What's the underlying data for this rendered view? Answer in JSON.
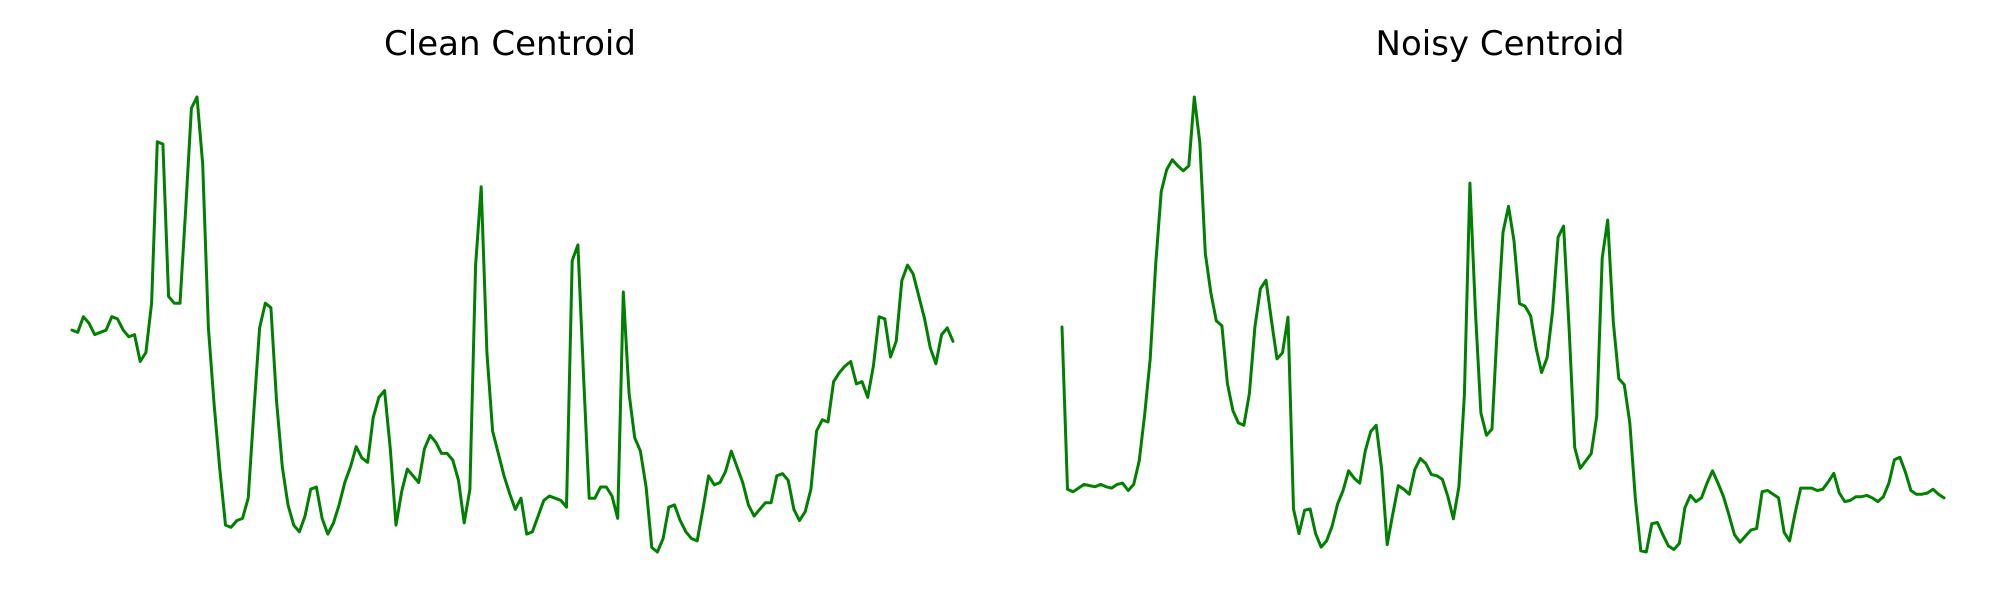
{
  "chart_data": [
    {
      "type": "line",
      "title": "Clean Centroid",
      "xlabel": "",
      "ylabel": "",
      "grid": false,
      "axes_visible": false,
      "color": "#008000",
      "series": [
        {
          "values": [
            0.7,
            0.69,
            0.76,
            0.73,
            0.68,
            0.69,
            0.7,
            0.76,
            0.75,
            0.7,
            0.67,
            0.68,
            0.56,
            0.6,
            0.82,
            1.54,
            1.53,
            0.85,
            0.82,
            0.82,
            1.24,
            1.69,
            1.74,
            1.44,
            0.71,
            0.37,
            0.08,
            -0.17,
            -0.18,
            -0.15,
            -0.14,
            -0.05,
            0.34,
            0.71,
            0.82,
            0.8,
            0.38,
            0.09,
            -0.08,
            -0.17,
            -0.2,
            -0.13,
            -0.01,
            0.0,
            -0.14,
            -0.21,
            -0.16,
            -0.08,
            0.02,
            0.09,
            0.18,
            0.13,
            0.11,
            0.31,
            0.4,
            0.43,
            0.17,
            -0.17,
            -0.02,
            0.08,
            0.05,
            0.02,
            0.17,
            0.23,
            0.2,
            0.15,
            0.15,
            0.12,
            0.03,
            -0.16,
            -0.01,
            0.99,
            1.34,
            0.6,
            0.25,
            0.15,
            0.05,
            -0.03,
            -0.1,
            -0.05,
            -0.21,
            -0.2,
            -0.13,
            -0.06,
            -0.04,
            -0.05,
            -0.06,
            -0.09,
            1.01,
            1.08,
            0.5,
            -0.05,
            -0.05,
            0.0,
            0.0,
            -0.04,
            -0.14,
            0.87,
            0.42,
            0.22,
            0.16,
            0.0,
            -0.27,
            -0.29,
            -0.23,
            -0.09,
            -0.08,
            -0.15,
            -0.2,
            -0.23,
            -0.24,
            -0.1,
            0.05,
            0.01,
            0.02,
            0.07,
            0.16,
            0.09,
            0.02,
            -0.08,
            -0.13,
            -0.1,
            -0.07,
            -0.07,
            0.05,
            0.06,
            0.03,
            -0.1,
            -0.15,
            -0.11,
            -0.01,
            0.25,
            0.3,
            0.29,
            0.47,
            0.51,
            0.54,
            0.56,
            0.46,
            0.47,
            0.4,
            0.54,
            0.76,
            0.75,
            0.58,
            0.65,
            0.92,
            0.99,
            0.95,
            0.85,
            0.75,
            0.62,
            0.55,
            0.68,
            0.71,
            0.65
          ]
        }
      ]
    },
    {
      "type": "line",
      "title": "Noisy Centroid",
      "xlabel": "",
      "ylabel": "",
      "grid": false,
      "axes_visible": false,
      "color": "#008000",
      "series": [
        {
          "values": [
            1.44,
            0.12,
            0.1,
            0.13,
            0.16,
            0.15,
            0.14,
            0.16,
            0.14,
            0.13,
            0.16,
            0.17,
            0.11,
            0.16,
            0.35,
            0.73,
            1.18,
            1.95,
            2.54,
            2.72,
            2.8,
            2.75,
            2.71,
            2.75,
            3.31,
            2.94,
            2.04,
            1.72,
            1.49,
            1.45,
            0.98,
            0.76,
            0.66,
            0.64,
            0.9,
            1.44,
            1.75,
            1.82,
            1.49,
            1.18,
            1.23,
            1.52,
            -0.04,
            -0.24,
            -0.05,
            -0.04,
            -0.24,
            -0.35,
            -0.3,
            -0.18,
            0.0,
            0.11,
            0.27,
            0.21,
            0.17,
            0.43,
            0.59,
            0.64,
            0.28,
            -0.33,
            -0.08,
            0.15,
            0.12,
            0.08,
            0.28,
            0.37,
            0.33,
            0.24,
            0.23,
            0.2,
            0.06,
            -0.12,
            0.14,
            0.89,
            2.61,
            1.57,
            0.74,
            0.56,
            0.61,
            1.47,
            2.21,
            2.42,
            2.14,
            1.63,
            1.61,
            1.53,
            1.27,
            1.07,
            1.19,
            1.57,
            2.17,
            2.26,
            1.43,
            0.46,
            0.29,
            0.35,
            0.41,
            0.71,
            2.0,
            2.31,
            1.48,
            1.02,
            0.97,
            0.66,
            0.05,
            -0.38,
            -0.39,
            -0.16,
            -0.15,
            -0.25,
            -0.34,
            -0.37,
            -0.32,
            -0.03,
            0.07,
            0.02,
            0.05,
            0.17,
            0.27,
            0.17,
            0.06,
            -0.09,
            -0.25,
            -0.31,
            -0.26,
            -0.21,
            -0.2,
            0.1,
            0.11,
            0.08,
            0.05,
            -0.23,
            -0.3,
            -0.07,
            0.13,
            0.13,
            0.13,
            0.11,
            0.12,
            0.18,
            0.25,
            0.09,
            0.02,
            0.03,
            0.06,
            0.06,
            0.07,
            0.05,
            0.02,
            0.06,
            0.17,
            0.36,
            0.38,
            0.26,
            0.11,
            0.08,
            0.08,
            0.09,
            0.12,
            0.08,
            0.05
          ]
        }
      ]
    }
  ]
}
